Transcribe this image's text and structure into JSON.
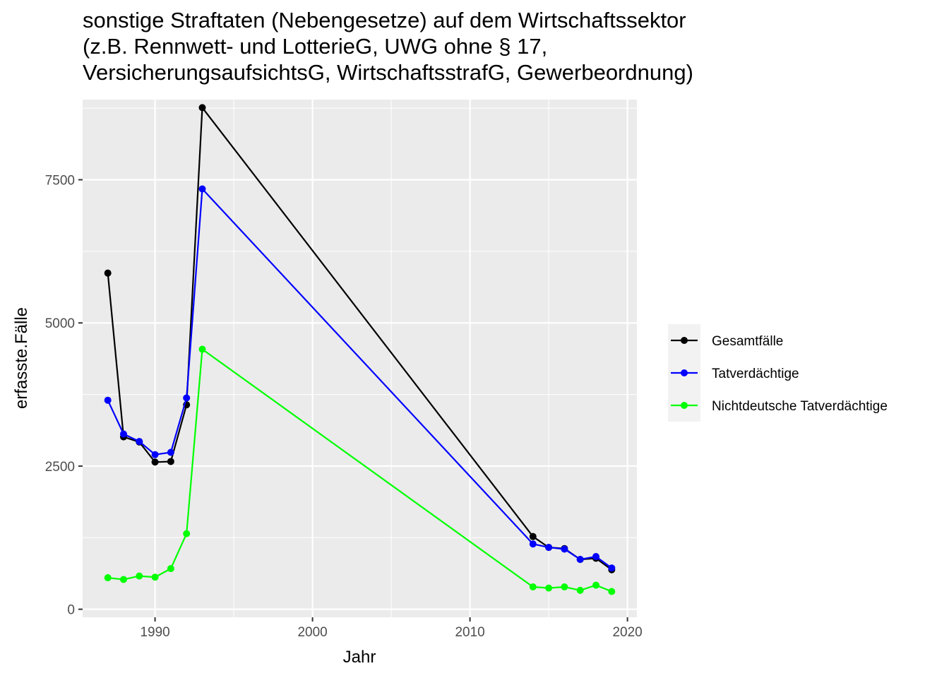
{
  "chart_data": {
    "type": "line",
    "title_lines": [
      "sonstige Straftaten (Nebengesetze) auf dem Wirtschaftssektor",
      "(z.B. Rennwett- und LotterieG, UWG ohne § 17,",
      "VersicherungsaufsichtsG, WirtschaftsstrafG, Gewerbeordnung)"
    ],
    "xlabel": "Jahr",
    "ylabel": "erfasste.Fälle",
    "xlim": [
      1985.4,
      2020.6
    ],
    "ylim": [
      -140,
      8900
    ],
    "x_ticks": [
      1990,
      2000,
      2010,
      2020
    ],
    "y_ticks": [
      0,
      2500,
      5000,
      7500
    ],
    "grid": true,
    "legend_position": "right",
    "series": [
      {
        "name": "Gesamtfälle",
        "color": "#000000",
        "points": [
          [
            1987,
            5870
          ],
          [
            1988,
            3010
          ],
          [
            1989,
            2920
          ],
          [
            1990,
            2570
          ],
          [
            1991,
            2580
          ],
          [
            1992,
            3570
          ],
          [
            1993,
            8760
          ],
          [
            2014,
            1270
          ],
          [
            2015,
            1080
          ],
          [
            2016,
            1060
          ],
          [
            2017,
            870
          ],
          [
            2018,
            890
          ],
          [
            2019,
            690
          ]
        ]
      },
      {
        "name": "Tatverdächtige",
        "color": "#0000ff",
        "points": [
          [
            1987,
            3650
          ],
          [
            1988,
            3060
          ],
          [
            1989,
            2930
          ],
          [
            1990,
            2700
          ],
          [
            1991,
            2740
          ],
          [
            1992,
            3690
          ],
          [
            1993,
            7340
          ],
          [
            2014,
            1140
          ],
          [
            2015,
            1080
          ],
          [
            2016,
            1050
          ],
          [
            2017,
            870
          ],
          [
            2018,
            920
          ],
          [
            2019,
            720
          ]
        ]
      },
      {
        "name": "Nichtdeutsche Tatverdächtige",
        "color": "#00ff00",
        "points": [
          [
            1987,
            550
          ],
          [
            1988,
            520
          ],
          [
            1989,
            580
          ],
          [
            1990,
            560
          ],
          [
            1991,
            710
          ],
          [
            1992,
            1320
          ],
          [
            1993,
            4540
          ],
          [
            2014,
            390
          ],
          [
            2015,
            370
          ],
          [
            2016,
            390
          ],
          [
            2017,
            330
          ],
          [
            2018,
            420
          ],
          [
            2019,
            310
          ]
        ]
      }
    ]
  }
}
